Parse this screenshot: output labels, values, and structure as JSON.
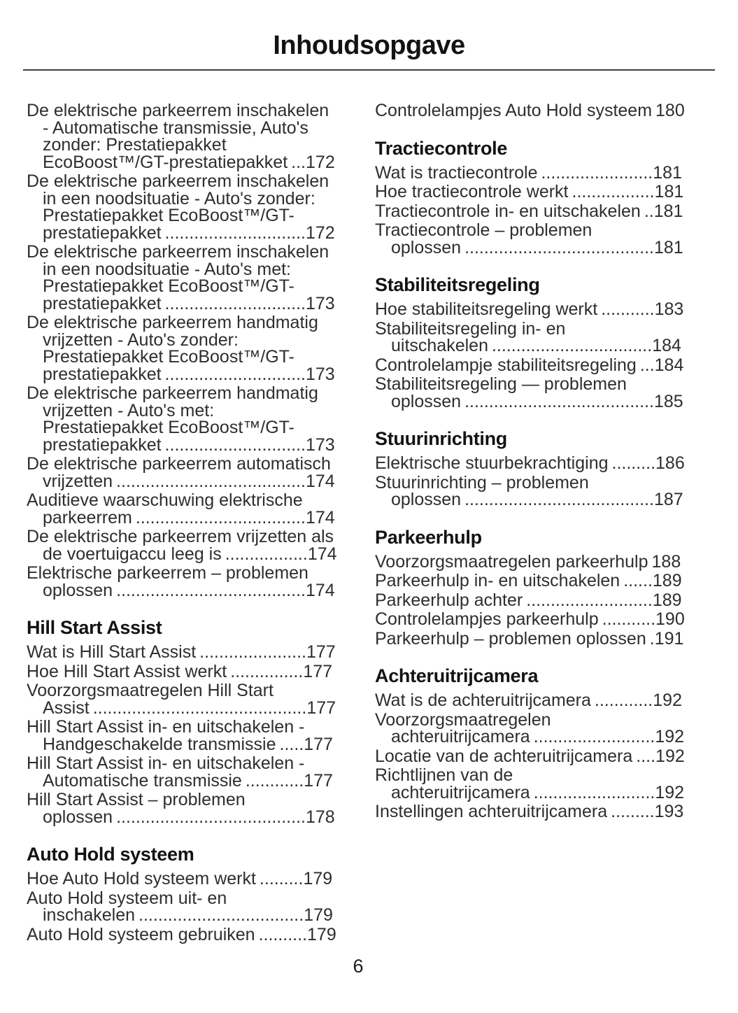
{
  "page": {
    "title": "Inhoudsopgave",
    "footer_page_number": "6"
  },
  "toc": {
    "columns": [
      {
        "blocks": [
          {
            "type": "entry",
            "text": "De elektrische parkeerrem inschakelen - Automatische transmissie, Auto's zonder: Prestatiepakket EcoBoost™/GT-prestatiepakket",
            "page": "172"
          },
          {
            "type": "entry",
            "text": "De elektrische parkeerrem inschakelen in een noodsituatie - Auto's zonder: Prestatiepakket EcoBoost™/GT-prestatiepakket",
            "page": "172"
          },
          {
            "type": "entry",
            "text": "De elektrische parkeerrem inschakelen in een noodsituatie - Auto's met: Prestatiepakket EcoBoost™/GT-prestatiepakket",
            "page": "173"
          },
          {
            "type": "entry",
            "text": "De elektrische parkeerrem handmatig vrijzetten - Auto's zonder: Prestatiepakket EcoBoost™/GT-prestatiepakket",
            "page": "173"
          },
          {
            "type": "entry",
            "text": "De elektrische parkeerrem handmatig vrijzetten - Auto's met: Prestatiepakket EcoBoost™/GT-prestatiepakket",
            "page": "173"
          },
          {
            "type": "entry",
            "text": "De elektrische parkeerrem automatisch vrijzetten",
            "page": "174"
          },
          {
            "type": "entry",
            "text": "Auditieve waarschuwing elektrische parkeerrem",
            "page": "174"
          },
          {
            "type": "entry",
            "text": "De elektrische parkeerrem vrijzetten als de voertuigaccu leeg is",
            "page": "174"
          },
          {
            "type": "entry",
            "text": "Elektrische parkeerrem – problemen oplossen",
            "page": "174"
          },
          {
            "type": "heading",
            "text": "Hill Start Assist"
          },
          {
            "type": "entry",
            "text": "Wat is Hill Start Assist",
            "page": "177"
          },
          {
            "type": "entry",
            "text": "Hoe Hill Start Assist werkt",
            "page": "177"
          },
          {
            "type": "entry",
            "text": "Voorzorgsmaatregelen Hill Start Assist",
            "page": "177"
          },
          {
            "type": "entry",
            "text": "Hill Start Assist in- en uitschakelen - Handgeschakelde transmissie",
            "page": "177"
          },
          {
            "type": "entry",
            "text": "Hill Start Assist in- en uitschakelen - Automatische transmissie",
            "page": "177"
          },
          {
            "type": "entry",
            "text": "Hill Start Assist – problemen oplossen",
            "page": "178"
          },
          {
            "type": "heading",
            "text": "Auto Hold systeem"
          },
          {
            "type": "entry",
            "text": "Hoe Auto Hold systeem werkt",
            "page": "179"
          },
          {
            "type": "entry",
            "text": "Auto Hold systeem uit- en inschakelen",
            "page": "179"
          },
          {
            "type": "entry",
            "text": "Auto Hold systeem gebruiken",
            "page": "179"
          }
        ]
      },
      {
        "blocks": [
          {
            "type": "entry",
            "text": "Controlelampjes Auto Hold systeem",
            "page": "180"
          },
          {
            "type": "heading",
            "text": "Tractiecontrole"
          },
          {
            "type": "entry",
            "text": "Wat is tractiecontrole",
            "page": "181"
          },
          {
            "type": "entry",
            "text": "Hoe tractiecontrole werkt",
            "page": "181"
          },
          {
            "type": "entry",
            "text": "Tractiecontrole in- en uitschakelen",
            "page": "181"
          },
          {
            "type": "entry",
            "text": "Tractiecontrole – problemen oplossen",
            "page": "181"
          },
          {
            "type": "heading",
            "text": "Stabiliteitsregeling"
          },
          {
            "type": "entry",
            "text": "Hoe stabiliteitsregeling werkt",
            "page": "183"
          },
          {
            "type": "entry",
            "text": "Stabiliteitsregeling in- en uitschakelen",
            "page": "184"
          },
          {
            "type": "entry",
            "text": "Controlelampje stabiliteitsregeling",
            "page": "184"
          },
          {
            "type": "entry",
            "text": "Stabiliteitsregeling — problemen oplossen",
            "page": "185"
          },
          {
            "type": "heading",
            "text": "Stuurinrichting"
          },
          {
            "type": "entry",
            "text": "Elektrische stuurbekrachtiging",
            "page": "186"
          },
          {
            "type": "entry",
            "text": "Stuurinrichting – problemen oplossen",
            "page": "187"
          },
          {
            "type": "heading",
            "text": "Parkeerhulp"
          },
          {
            "type": "entry",
            "text": "Voorzorgsmaatregelen parkeerhulp",
            "page": "188"
          },
          {
            "type": "entry",
            "text": "Parkeerhulp in- en uitschakelen",
            "page": "189"
          },
          {
            "type": "entry",
            "text": "Parkeerhulp achter",
            "page": "189"
          },
          {
            "type": "entry",
            "text": "Controlelampjes parkeerhulp",
            "page": "190"
          },
          {
            "type": "entry",
            "text": "Parkeerhulp – problemen oplossen",
            "page": "191"
          },
          {
            "type": "heading",
            "text": "Achteruitrijcamera"
          },
          {
            "type": "entry",
            "text": "Wat is de achteruitrijcamera",
            "page": "192"
          },
          {
            "type": "entry",
            "text": "Voorzorgsmaatregelen achteruitrijcamera",
            "page": "192"
          },
          {
            "type": "entry",
            "text": "Locatie van de achteruitrijcamera",
            "page": "192"
          },
          {
            "type": "entry",
            "text": "Richtlijnen van de achteruitrijcamera",
            "page": "192"
          },
          {
            "type": "entry",
            "text": "Instellingen achteruitrijcamera",
            "page": "193"
          }
        ]
      }
    ]
  }
}
